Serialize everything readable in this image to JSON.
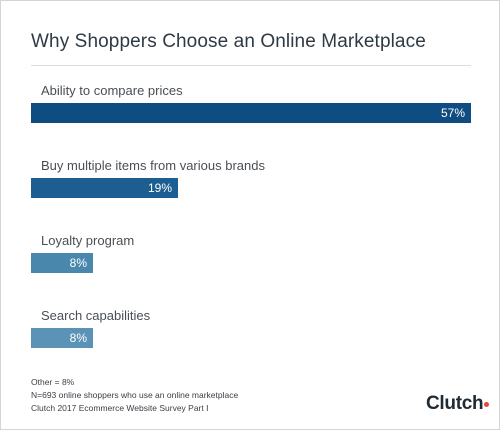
{
  "colors": {
    "bar_dark": "#0f4c81",
    "bar_mid": "#1c5e91",
    "bar_light": "#4a87ad",
    "bar_lighter": "#5a93b6"
  },
  "chart_data": {
    "type": "bar",
    "orientation": "horizontal",
    "title": "Why Shoppers Choose an Online Marketplace",
    "categories": [
      "Ability to compare prices",
      "Buy multiple items from various brands",
      "Loyalty program",
      "Search capabilities"
    ],
    "values": [
      57,
      19,
      8,
      8
    ],
    "value_labels": [
      "57%",
      "19%",
      "8%",
      "8%"
    ],
    "unit": "%",
    "xlim": [
      0,
      57
    ],
    "grid": false,
    "legend": "none"
  },
  "footnotes": [
    "Other = 8%",
    "N=693 online shoppers who use an online marketplace",
    "Clutch 2017 Ecommerce Website Survey Part I"
  ],
  "logo": {
    "text": "Clutch",
    "icon": "red-dot-icon"
  }
}
